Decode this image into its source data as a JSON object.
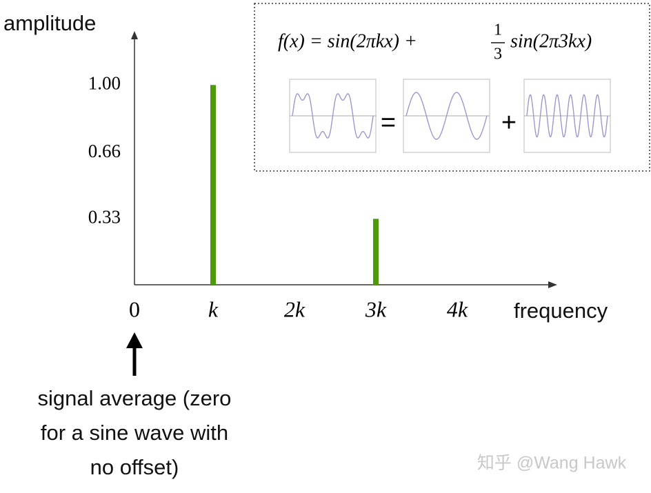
{
  "chart_data": {
    "type": "bar",
    "ylabel": "amplitude",
    "xlabel": "frequency",
    "categories": [
      "0",
      "k",
      "2k",
      "3k",
      "4k"
    ],
    "values": [
      0,
      1.0,
      0,
      0.33,
      0
    ],
    "color": "#4e9a0c",
    "ylim": [
      0,
      1.27
    ],
    "yticks": [
      0.33,
      0.66,
      {
        "value": 1,
        "label": "1.00"
      }
    ],
    "annotation_lines": [
      "signal average (zero",
      "for a sine wave with",
      "no offset)"
    ],
    "watermark": "知乎 @Wang Hawk",
    "inset": {
      "formula_left": "f(x) = sin(2πkx) +",
      "numerator": "1",
      "denominator": "3",
      "formula_right": "sin(2π3kx)",
      "equals": "=",
      "plus": "+"
    }
  }
}
